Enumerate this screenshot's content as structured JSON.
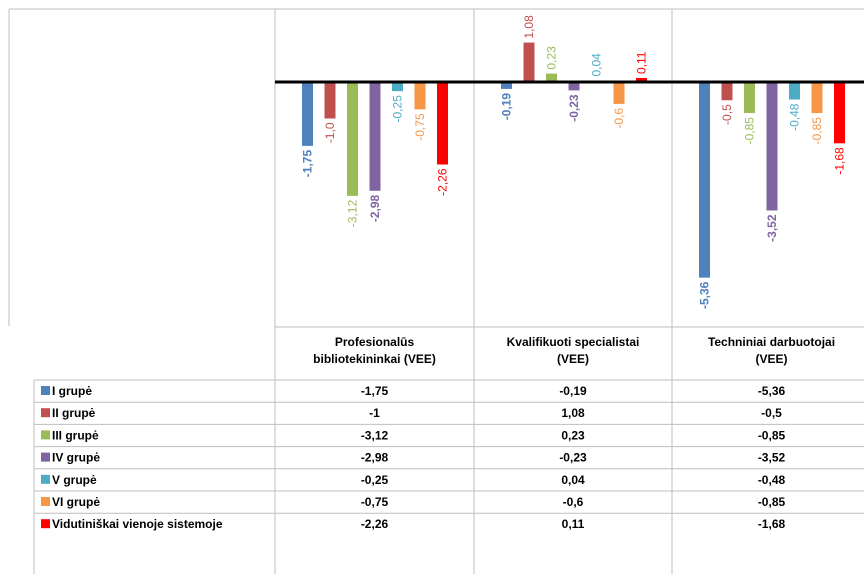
{
  "chart_data": {
    "type": "bar",
    "categories": [
      [
        "Profesionalūs",
        "bibliotekininkai (VEE)"
      ],
      [
        "Kvalifikuoti specialistai",
        "(VEE)"
      ],
      [
        "Techniniai darbuotojai",
        "(VEE)"
      ]
    ],
    "series": [
      {
        "name": "I grupė",
        "color": "#4F81BD",
        "bold": true,
        "values": [
          -1.75,
          -0.19,
          -5.36
        ],
        "labels": [
          "-1,75",
          "-0,19",
          "-5,36"
        ],
        "table": [
          "-1,75",
          "-0,19",
          "-5,36"
        ]
      },
      {
        "name": "II grupė",
        "color": "#C0504D",
        "bold": false,
        "values": [
          -1.0,
          1.08,
          -0.5
        ],
        "labels": [
          "-1,0",
          "1,08",
          "-0,5"
        ],
        "table": [
          "-1",
          "1,08",
          "-0,5"
        ]
      },
      {
        "name": "III grupė",
        "color": "#9BBB59",
        "bold": false,
        "values": [
          -3.12,
          0.23,
          -0.85
        ],
        "labels": [
          "-3,12",
          "0,23",
          "-0,85"
        ],
        "table": [
          "-3,12",
          "0,23",
          "-0,85"
        ]
      },
      {
        "name": "IV grupė",
        "color": "#8064A2",
        "bold": true,
        "values": [
          -2.98,
          -0.23,
          -3.52
        ],
        "labels": [
          "-2,98",
          "-0,23",
          "-3,52"
        ],
        "table": [
          "-2,98",
          "-0,23",
          "-3,52"
        ]
      },
      {
        "name": "V grupė",
        "color": "#4BACC6",
        "bold": false,
        "values": [
          -0.25,
          0.04,
          -0.48
        ],
        "labels": [
          "-0,25",
          "0,04",
          "-0,48"
        ],
        "table": [
          "-0,25",
          "0,04",
          "-0,48"
        ]
      },
      {
        "name": "VI grupė",
        "color": "#F79646",
        "bold": false,
        "values": [
          -0.75,
          -0.6,
          -0.85
        ],
        "labels": [
          "-0,75",
          "-0,6",
          "-0,85"
        ],
        "table": [
          "-0,75",
          "-0,6",
          "-0,85"
        ]
      },
      {
        "name": "Vidutiniškai vienoje sistemoje",
        "color": "#FF0000",
        "bold": false,
        "values": [
          -2.26,
          0.11,
          -1.68
        ],
        "labels": [
          "-2,26",
          "0,11",
          "-1,68"
        ],
        "table": [
          "-2,26",
          "0,11",
          "-1,68"
        ]
      }
    ],
    "ylim": [
      -5.5,
      1.4
    ],
    "data_table": true,
    "grid": false,
    "legend": "in data table"
  }
}
